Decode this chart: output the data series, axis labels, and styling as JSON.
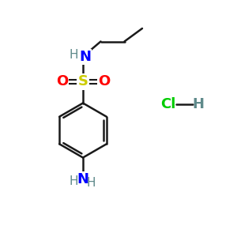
{
  "bg_color": "#ffffff",
  "bond_color": "#1a1a1a",
  "N_color": "#0000ff",
  "H_color": "#5f8a8b",
  "S_color": "#cccc00",
  "O_color": "#ff0000",
  "Cl_color": "#00cc00",
  "figsize": [
    3.0,
    3.0
  ],
  "dpi": 100,
  "xlim": [
    0,
    10
  ],
  "ylim": [
    0,
    10
  ]
}
